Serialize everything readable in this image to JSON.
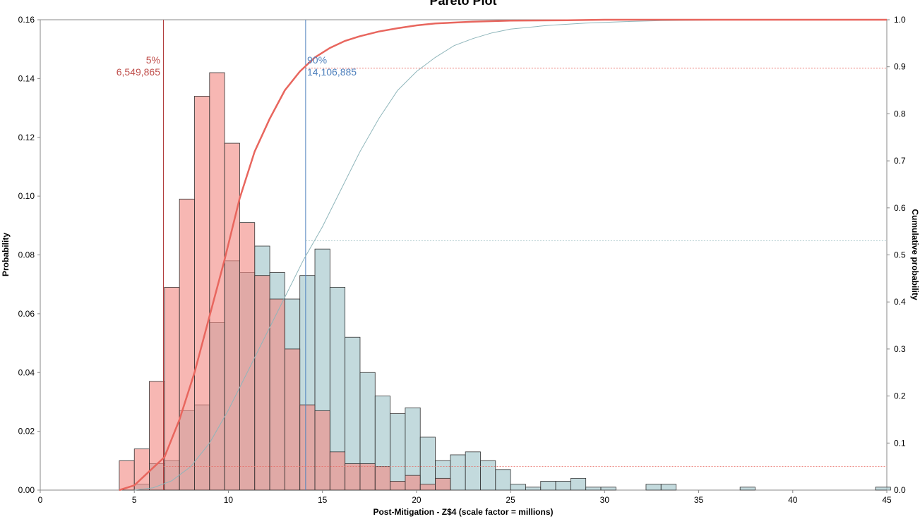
{
  "chart_data": {
    "type": "bar",
    "title": "Pareto Plot",
    "xlabel": "Post-Mitigation - Z$4 (scale factor = millions)",
    "ylabel": "Probability",
    "y2label": "Cumulative probability",
    "xlim": [
      0,
      45
    ],
    "ylim": [
      0,
      0.16
    ],
    "y2lim": [
      0,
      1.0
    ],
    "x_ticks": [
      "0",
      "5",
      "10",
      "15",
      "20",
      "25",
      "30",
      "35",
      "40",
      "45"
    ],
    "y_ticks": [
      "0.00",
      "0.02",
      "0.04",
      "0.06",
      "0.08",
      "0.10",
      "0.12",
      "0.14",
      "0.16"
    ],
    "y2_ticks": [
      "0.0",
      "0.1",
      "0.2",
      "0.3",
      "0.4",
      "0.5",
      "0.6",
      "0.7",
      "0.8",
      "0.9",
      "1.0"
    ],
    "bin_width": 0.8,
    "grid": false,
    "colors": {
      "red_fill": "#f28b85",
      "red_line": "#e8665e",
      "red_marker": "#b03a3a",
      "teal_fill": "#a9cbcf",
      "teal_line": "#8fb6bb",
      "blue_marker": "#4f81bd",
      "bar_edge": "#333333",
      "axis": "#888888"
    },
    "series": [
      {
        "bin_starts": [
          4.2,
          5.0,
          5.8,
          6.6,
          7.4,
          8.2,
          9.0,
          9.8,
          10.6,
          11.4,
          12.2,
          13.0,
          13.8,
          14.6,
          15.4,
          16.2,
          17.0,
          17.8,
          18.6,
          19.4,
          20.2,
          21.0
        ],
        "values": [
          0.01,
          0.014,
          0.037,
          0.069,
          0.099,
          0.134,
          0.142,
          0.118,
          0.091,
          0.073,
          0.065,
          0.048,
          0.029,
          0.027,
          0.013,
          0.009,
          0.009,
          0.008,
          0.003,
          0.005,
          0.002,
          0.004
        ],
        "cdf_x": [
          4.2,
          5.0,
          5.8,
          6.6,
          7.4,
          8.2,
          9.0,
          9.8,
          10.6,
          11.4,
          12.2,
          13.0,
          13.8,
          14.6,
          15.4,
          16.2,
          17.0,
          18.0,
          19.0,
          20.0,
          21.0,
          22.0,
          23.0,
          25.0,
          28.0,
          30.0,
          45.0
        ],
        "cdf_y": [
          0.0,
          0.01,
          0.04,
          0.07,
          0.15,
          0.25,
          0.37,
          0.49,
          0.62,
          0.72,
          0.79,
          0.85,
          0.89,
          0.92,
          0.94,
          0.955,
          0.965,
          0.975,
          0.982,
          0.988,
          0.992,
          0.994,
          0.996,
          0.998,
          0.999,
          1.0,
          1.0
        ]
      },
      {
        "bin_starts": [
          4.2,
          5.0,
          5.8,
          6.6,
          7.4,
          8.2,
          9.0,
          9.8,
          10.6,
          11.4,
          12.2,
          13.0,
          13.8,
          14.6,
          15.4,
          16.2,
          17.0,
          17.8,
          18.6,
          19.4,
          20.2,
          21.0,
          21.8,
          22.6,
          23.4,
          24.2,
          25.0,
          25.8,
          26.6,
          27.4,
          28.2,
          29.0,
          29.8,
          32.2,
          33.0,
          37.2,
          44.4
        ],
        "values": [
          0.0,
          0.002,
          0.009,
          0.01,
          0.027,
          0.029,
          0.057,
          0.078,
          0.074,
          0.083,
          0.074,
          0.065,
          0.073,
          0.082,
          0.069,
          0.052,
          0.04,
          0.032,
          0.026,
          0.028,
          0.018,
          0.01,
          0.012,
          0.013,
          0.01,
          0.007,
          0.002,
          0.001,
          0.003,
          0.003,
          0.004,
          0.001,
          0.001,
          0.002,
          0.002,
          0.001,
          0.001
        ],
        "cdf_x": [
          5.0,
          6.0,
          7.0,
          8.0,
          9.0,
          10.0,
          11.0,
          12.0,
          13.0,
          14.0,
          15.0,
          16.0,
          17.0,
          18.0,
          19.0,
          20.0,
          21.0,
          22.0,
          23.0,
          24.0,
          25.0,
          27.0,
          29.0,
          31.0,
          33.0,
          35.0,
          38.0,
          45.0
        ],
        "cdf_y": [
          0.0,
          0.005,
          0.02,
          0.05,
          0.1,
          0.17,
          0.25,
          0.33,
          0.41,
          0.49,
          0.56,
          0.64,
          0.72,
          0.79,
          0.85,
          0.89,
          0.92,
          0.945,
          0.96,
          0.972,
          0.98,
          0.988,
          0.993,
          0.996,
          0.998,
          0.999,
          1.0,
          1.0
        ]
      }
    ],
    "reference_lines": {
      "red_vertical_x": 6.549865,
      "blue_vertical_x": 14.106885,
      "red_h_upper_y2": 0.897,
      "red_h_lower_y2": 0.05,
      "teal_h_y2": 0.53
    },
    "annotations": [
      {
        "id": "lower",
        "pct": "5%",
        "value": "6,549,865",
        "color": "red"
      },
      {
        "id": "upper",
        "pct": "90%",
        "value": "14,106,885",
        "color": "blue"
      }
    ]
  }
}
